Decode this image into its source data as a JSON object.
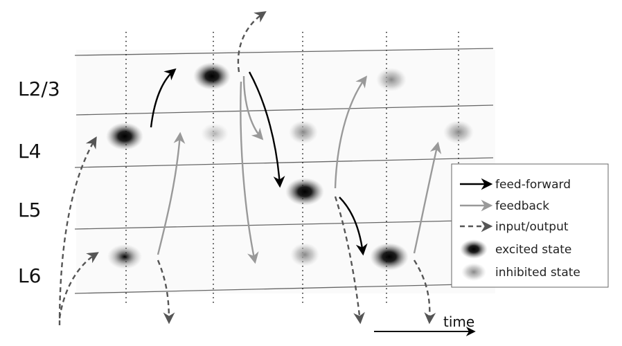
{
  "layers": [
    "L2/3",
    "L4",
    "L5",
    "L6"
  ],
  "legend": {
    "feed_forward": "feed-forward",
    "feedback": "feedback",
    "input_output": "input/output",
    "excited": "excited state",
    "inhibited": "inhibited state"
  },
  "time_label": "time",
  "colors": {
    "feed_forward": "#000000",
    "feedback": "#999999",
    "input_output": "#555555",
    "excited": "#000000",
    "inhibited": "#999999"
  }
}
